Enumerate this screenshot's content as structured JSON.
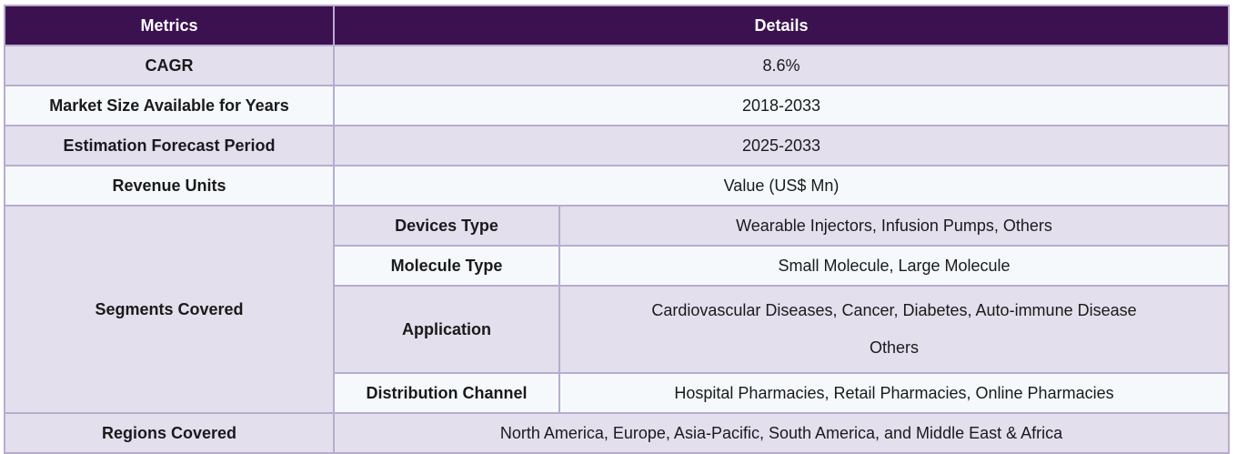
{
  "header": {
    "metrics_label": "Metrics",
    "details_label": "Details"
  },
  "rows": [
    {
      "key": "CAGR",
      "value": "8.6%"
    },
    {
      "key": "Market Size Available for Years",
      "value": "2018-2033"
    },
    {
      "key": "Estimation Forecast Period",
      "value": "2025-2033"
    },
    {
      "key": "Revenue Units",
      "value": "Value (US$ Mn)"
    }
  ],
  "segments": {
    "label": "Segments Covered",
    "items": [
      {
        "key": "Devices Type",
        "value": "Wearable Injectors, Infusion Pumps, Others"
      },
      {
        "key": "Molecule Type",
        "value": "Small Molecule, Large Molecule"
      },
      {
        "key": "Application",
        "value_lines": [
          "Cardiovascular Diseases, Cancer, Diabetes, Auto-immune Disease",
          "Others"
        ]
      },
      {
        "key": "Distribution Channel",
        "value": "Hospital Pharmacies, Retail Pharmacies, Online Pharmacies"
      }
    ]
  },
  "regions": {
    "key": "Regions Covered",
    "value": "North America, Europe, Asia-Pacific, South America, and Middle East & Africa"
  }
}
